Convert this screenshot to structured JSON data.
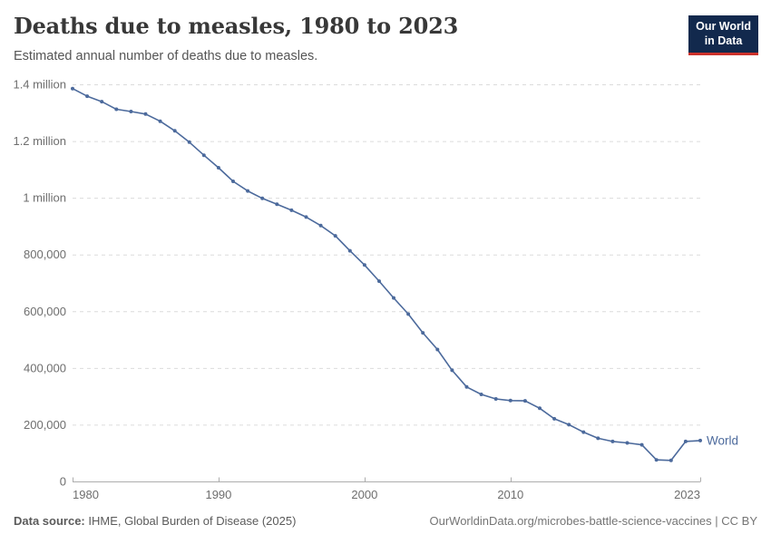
{
  "header": {
    "title": "Deaths due to measles, 1980 to 2023",
    "subtitle": "Estimated annual number of deaths due to measles.",
    "logo": {
      "line1": "Our World",
      "line2": "in Data",
      "bg_color": "#12294d",
      "accent_color": "#cc312b"
    }
  },
  "footer": {
    "source_label": "Data source:",
    "source_text": " IHME, Global Burden of Disease (2025)",
    "attribution": "OurWorldinData.org/microbes-battle-science-vaccines | CC BY"
  },
  "colors": {
    "series_blue": "#4c6a9c",
    "gridline": "#dcdcdc",
    "axis": "#adadad",
    "tick_text": "#6e6e6e"
  },
  "chart_data": {
    "type": "line",
    "title": "Deaths due to measles, 1980 to 2023",
    "xlabel": "",
    "ylabel": "",
    "xlim": [
      1980,
      2023
    ],
    "ylim": [
      0,
      1400000
    ],
    "grid": "horizontal-dashed",
    "legend_position": "end-of-line",
    "x_ticks": [
      1980,
      1990,
      2000,
      2010,
      2023
    ],
    "x_tick_labels": [
      "1980",
      "1990",
      "2000",
      "2010",
      "2023"
    ],
    "y_ticks": [
      0,
      200000,
      400000,
      600000,
      800000,
      1000000,
      1200000,
      1400000
    ],
    "y_tick_labels": [
      "0",
      "200,000",
      "400,000",
      "600,000",
      "800,000",
      "1 million",
      "1.2 million",
      "1.4 million"
    ],
    "series": [
      {
        "name": "World",
        "color": "#4c6a9c",
        "markers": true,
        "x": [
          1980,
          1981,
          1982,
          1983,
          1984,
          1985,
          1986,
          1987,
          1988,
          1989,
          1990,
          1991,
          1992,
          1993,
          1994,
          1995,
          1996,
          1997,
          1998,
          1999,
          2000,
          2001,
          2002,
          2003,
          2004,
          2005,
          2006,
          2007,
          2008,
          2009,
          2010,
          2011,
          2012,
          2013,
          2014,
          2015,
          2016,
          2017,
          2018,
          2019,
          2020,
          2021,
          2022,
          2023
        ],
        "values": [
          1385000,
          1358000,
          1339000,
          1312000,
          1304000,
          1295000,
          1270000,
          1236000,
          1196000,
          1150000,
          1106000,
          1058000,
          1024000,
          998000,
          977000,
          956000,
          932000,
          902000,
          866000,
          813000,
          763000,
          706000,
          647000,
          590000,
          524000,
          465000,
          392000,
          333000,
          307000,
          291000,
          285000,
          284000,
          258000,
          221000,
          200000,
          174000,
          152000,
          141000,
          136000,
          129000,
          76000,
          74000,
          141000,
          144000
        ]
      }
    ]
  }
}
